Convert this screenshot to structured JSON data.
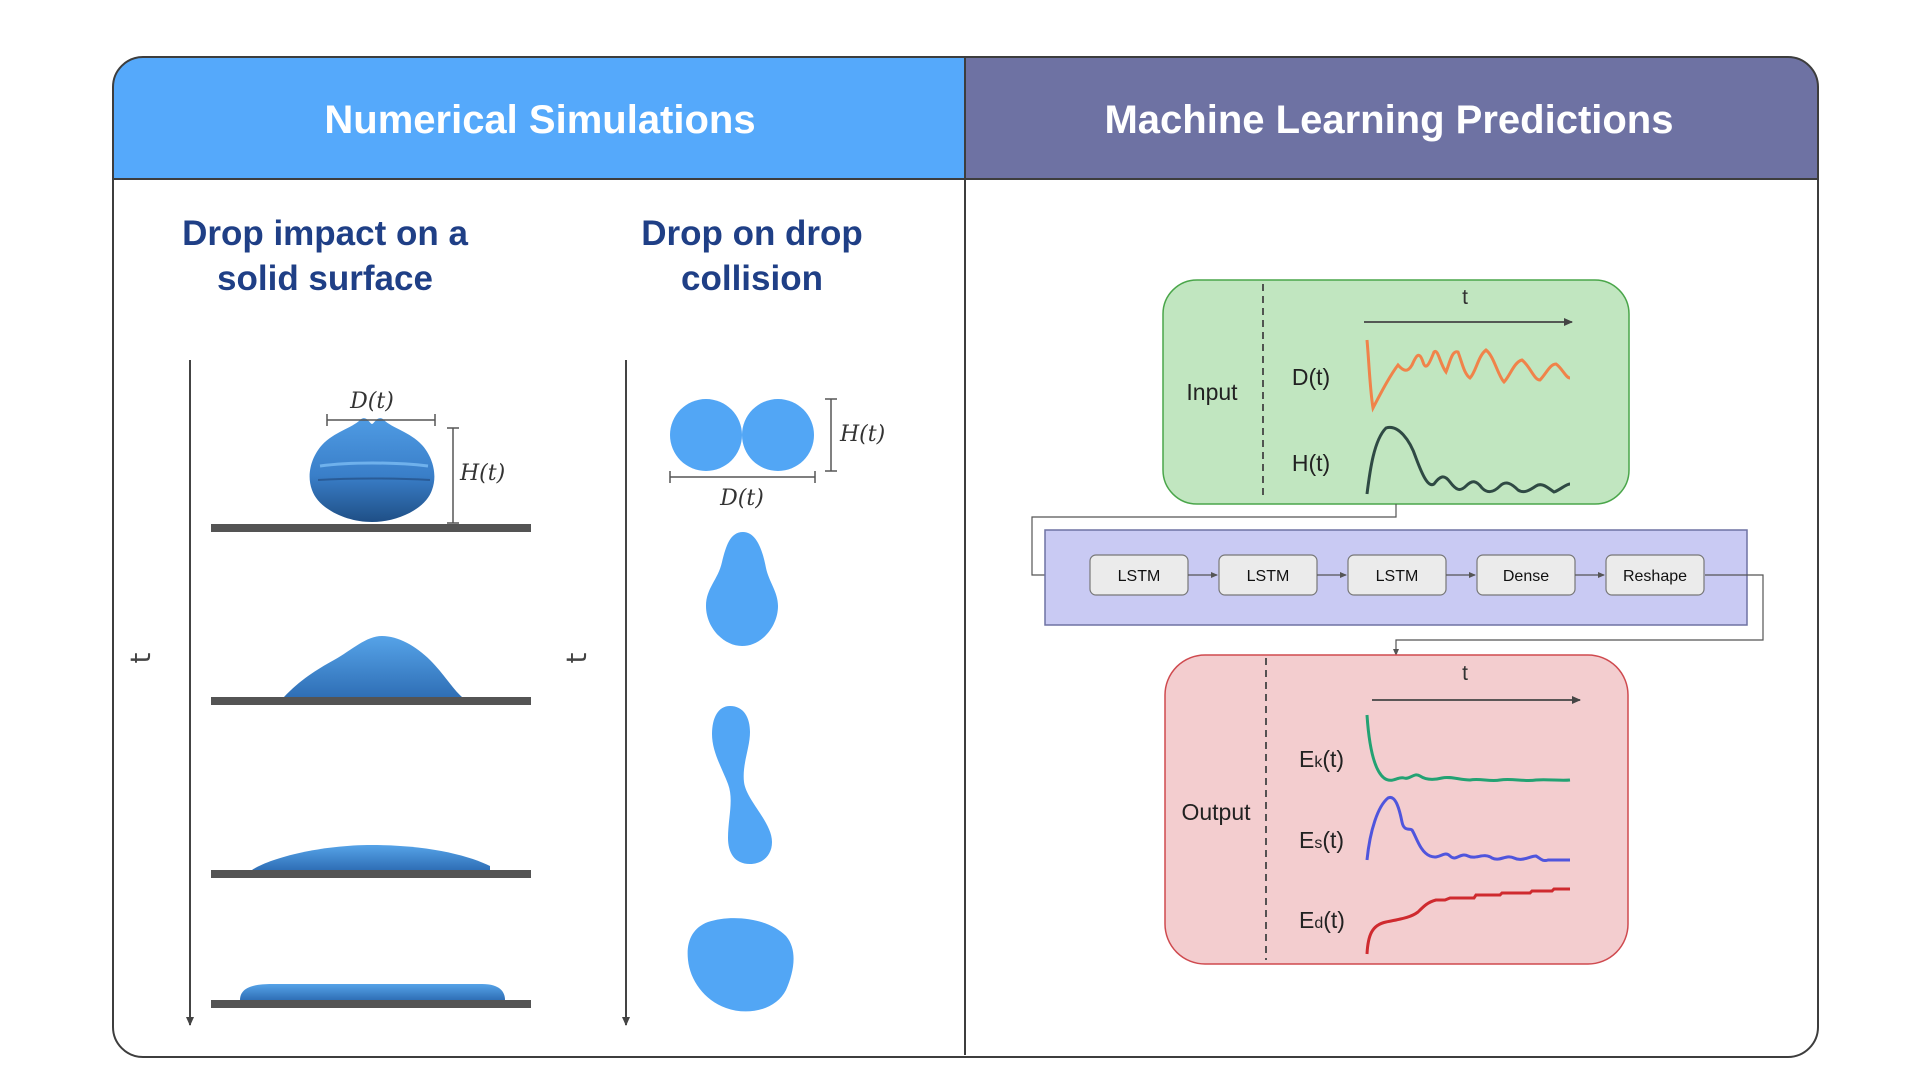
{
  "panels": {
    "left_title": "Numerical Simulations",
    "right_title": "Machine Learning Predictions"
  },
  "left": {
    "solid_title_line1": "Drop impact on a",
    "solid_title_line2": "solid surface",
    "collision_title_line1": "Drop on drop",
    "collision_title_line2": "collision",
    "time_axis_label": "t",
    "diameter_label": "D(t)",
    "height_label": "H(t)"
  },
  "right": {
    "input_label": "Input",
    "input_signals": [
      "D(t)",
      "H(t)"
    ],
    "time_label": "t",
    "layers": [
      "LSTM",
      "LSTM",
      "LSTM",
      "Dense",
      "Reshape"
    ],
    "output_label": "Output",
    "output_signals": [
      {
        "main": "E",
        "sub": "k",
        "tail": "(t)"
      },
      {
        "main": "E",
        "sub": "s",
        "tail": "(t)"
      },
      {
        "main": "E",
        "sub": "d",
        "tail": "(t)"
      }
    ]
  },
  "colors": {
    "left_header": "#55a9fb",
    "right_header": "#6e72a3",
    "subtitle": "#1f3f86",
    "drop": "#4a97e2",
    "input_box": "#c1e6c0",
    "network_box": "#c9caf3",
    "output_box": "#f3cdcf",
    "d_signal": "#f0834a",
    "h_signal": "#2f4a44",
    "ek_signal": "#23a273",
    "es_signal": "#4f55dd",
    "ed_signal": "#cf2a2f"
  }
}
